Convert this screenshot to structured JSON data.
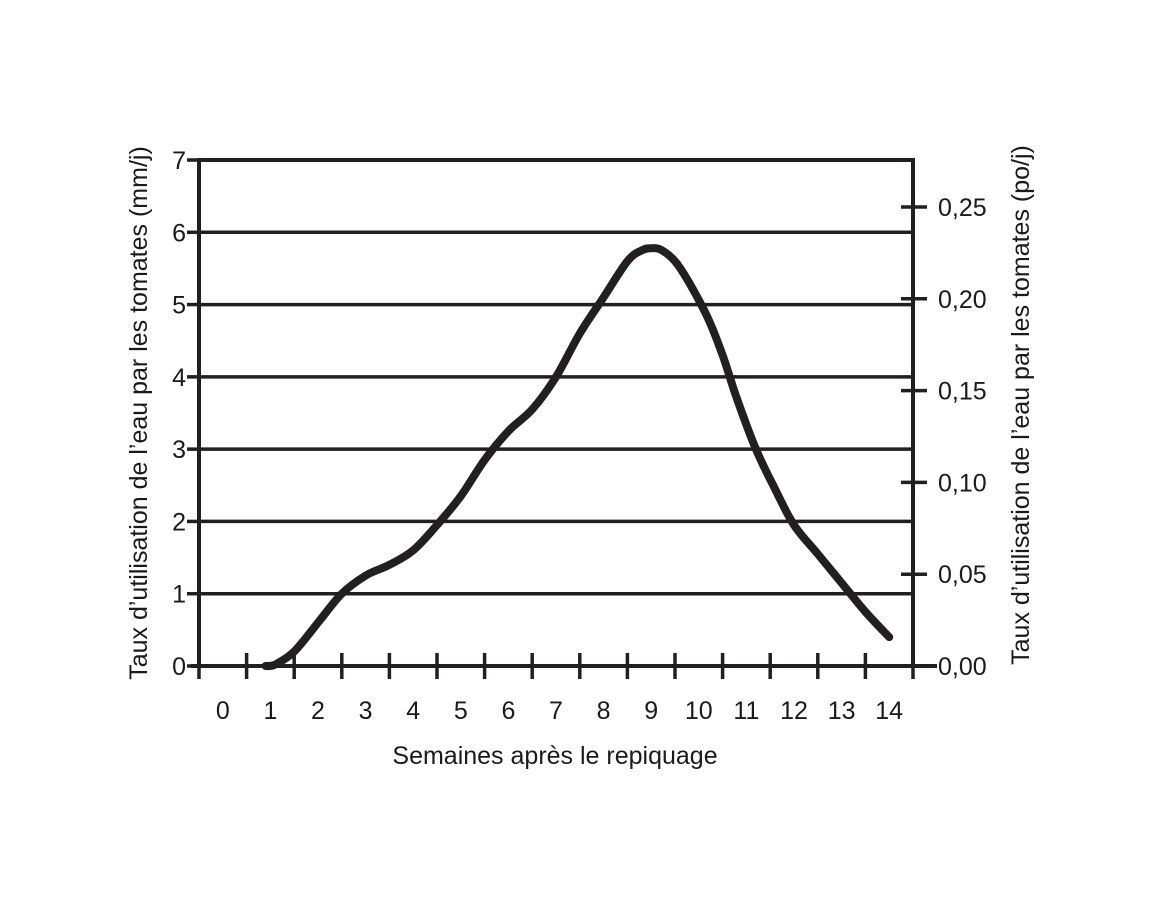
{
  "chart_data": {
    "type": "line",
    "xlabel": "Semaines après le repiquage",
    "ylabel": "Taux d’utilisation de l’eau par les tomates (mm/j)",
    "y2label": "Taux d’utilisation de l’eau par les tomates (po/j)",
    "xlim": [
      -0.5,
      14.5
    ],
    "ylim": [
      0,
      7
    ],
    "y2lim": [
      0,
      0.2756
    ],
    "x_ticks": [
      "0",
      "1",
      "2",
      "3",
      "4",
      "5",
      "6",
      "7",
      "8",
      "9",
      "10",
      "11",
      "12",
      "13",
      "14"
    ],
    "y_ticks": [
      "0",
      "1",
      "2",
      "3",
      "4",
      "5",
      "6",
      "7"
    ],
    "y2_ticks": [
      {
        "value": 0.0,
        "label": "0,00"
      },
      {
        "value": 0.05,
        "label": "0,05"
      },
      {
        "value": 0.1,
        "label": "0,10"
      },
      {
        "value": 0.15,
        "label": "0,15"
      },
      {
        "value": 0.2,
        "label": "0,20"
      },
      {
        "value": 0.25,
        "label": "0,25"
      }
    ],
    "grid": "horizontal",
    "series": [
      {
        "x": [
          0.9,
          1.1,
          1.5,
          2.0,
          2.5,
          3.0,
          3.5,
          4.0,
          4.5,
          5.0,
          5.5,
          6.0,
          6.5,
          7.0,
          7.5,
          8.0,
          8.5,
          8.8,
          9.0,
          9.2,
          9.5,
          9.8,
          10.2,
          10.5,
          10.8,
          11.2,
          11.6,
          12.0,
          12.5,
          13.0,
          13.5,
          14.0
        ],
        "y": [
          0.0,
          0.02,
          0.2,
          0.6,
          1.0,
          1.25,
          1.4,
          1.6,
          1.95,
          2.35,
          2.85,
          3.25,
          3.55,
          4.0,
          4.6,
          5.1,
          5.6,
          5.75,
          5.78,
          5.76,
          5.6,
          5.3,
          4.8,
          4.3,
          3.7,
          3.0,
          2.45,
          1.95,
          1.55,
          1.15,
          0.75,
          0.4
        ]
      }
    ]
  }
}
